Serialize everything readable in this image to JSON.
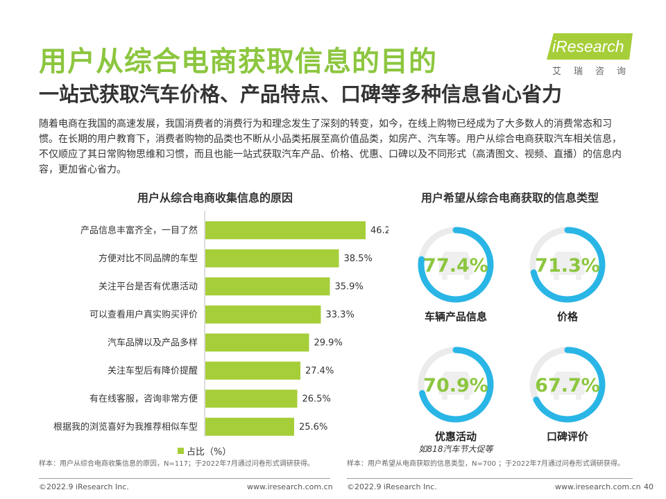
{
  "header": {
    "title": "用户从综合电商获取信息的目的",
    "subtitle": "一站式获取汽车价格、产品特点、口碑等多种信息省心省力"
  },
  "logo": {
    "text": "iResearch",
    "sub": "艾瑞咨询"
  },
  "intro": "随着电商在我国的高速发展，我国消费者的消费行为和理念发生了深刻的转变，如今，在线上购物已经成为了大多数人的消费常态和习惯。在长期的用户教育下，消费者购物的品类也不断从小品类拓展至高价值品类，如房产、汽车等。用户从综合电商获取汽车相关信息，不仅顺应了其日常购物思维和习惯，而且也能一站式获取汽车产品、价格、优惠、口碑以及不同形式（高清图文、视频、直播）的信息内容，更加省心省力。",
  "chart_data": [
    {
      "type": "bar",
      "orientation": "horizontal",
      "title": "用户从综合电商收集信息的原因",
      "categories": [
        "产品信息丰富齐全，一目了然",
        "方便对比不同品牌的车型",
        "关注平台是否有优惠活动",
        "可以查看用户真实购买评价",
        "汽车品牌以及产品多样",
        "关注车型后有降价提醒",
        "有在线客服，咨询非常方便",
        "根据我的浏览喜好为我推荐相似车型"
      ],
      "values": [
        46.2,
        38.5,
        35.9,
        33.3,
        29.9,
        27.4,
        26.5,
        25.6
      ],
      "value_labels": [
        "46.2%",
        "38.5%",
        "35.9%",
        "33.3%",
        "29.9%",
        "27.4%",
        "26.5%",
        "25.6%"
      ],
      "series_name": "占比（%）",
      "xlim": [
        0,
        50
      ],
      "grid": false,
      "legend": "bottom",
      "color": "#a6ce39"
    },
    {
      "type": "pie",
      "style": "ring",
      "title": "用户希望从综合电商获取的信息类型",
      "items": [
        {
          "label": "车辆产品信息",
          "value": 77.4,
          "value_label": "77.4%",
          "caption": ""
        },
        {
          "label": "价格",
          "value": 71.3,
          "value_label": "71.3%",
          "caption": ""
        },
        {
          "label": "优惠活动",
          "value": 70.9,
          "value_label": "70.9%",
          "caption": "如818汽车节大促等"
        },
        {
          "label": "口碑评价",
          "value": 67.7,
          "value_label": "67.7%",
          "caption": ""
        }
      ],
      "ring_color": "#29b6e6",
      "track_color": "#ebebeb",
      "value_color": "#8cc63f",
      "icon": "car-icon"
    }
  ],
  "notes": {
    "left": "样本：用户从综合电商收集信息的原因，N=117；于2022年7月通过问卷形式调研获得。",
    "right": "样本：用户希望从电商获取的信息类型，N=700 ；于2022年7月通过问卷形式调研获得。"
  },
  "footer": {
    "copyright": "©2022.9 iResearch Inc.",
    "url": "www.iresearch.com.cn",
    "page": "40"
  }
}
